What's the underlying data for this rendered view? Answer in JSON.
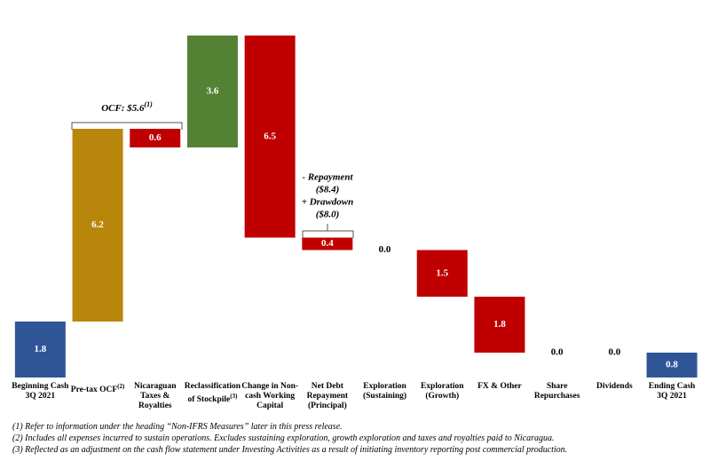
{
  "chart_data": {
    "type": "waterfall",
    "categories": [
      "Beginning Cash 3Q 2021",
      "Pre-tax OCF",
      "Nicaraguan Taxes & Royalties",
      "Reclassification of Stockpile",
      "Change in Non-cash Working Capital",
      "Net Debt Repayment (Principal)",
      "Exploration (Sustaining)",
      "Exploration (Growth)",
      "FX & Other",
      "Share Repurchases",
      "Dividends",
      "Ending Cash 3Q 2021"
    ],
    "category_notes": [
      null,
      "(2)",
      null,
      "(3)",
      null,
      null,
      null,
      null,
      null,
      null,
      null,
      null
    ],
    "values": [
      1.8,
      6.2,
      0.6,
      3.6,
      6.5,
      0.4,
      0,
      1.5,
      1.8,
      0,
      0,
      0.8
    ],
    "value_labels": [
      "1.8",
      "6.2",
      "0.6",
      "3.6",
      "6.5",
      "0.4",
      "0.0",
      "1.5",
      "1.8",
      "0.0",
      "0.0",
      "0.8"
    ],
    "steps": [
      "total",
      "increase",
      "decrease",
      "increase",
      "decrease",
      "decrease",
      "decrease",
      "decrease",
      "decrease",
      "decrease",
      "decrease",
      "total"
    ],
    "colors": [
      "#2f5597",
      "#b8860b",
      "#c00000",
      "#548235",
      "#c00000",
      "#c00000",
      "#c00000",
      "#c00000",
      "#c00000",
      "#c00000",
      "#c00000",
      "#2f5597"
    ],
    "annotations": {
      "ocf_label": "OCF: $5.6",
      "ocf_note": "(1)",
      "debt_lines": [
        "- Repayment",
        "($8.4)",
        "+ Drawdown",
        "($8.0)"
      ]
    },
    "footnotes": [
      "(1) Refer to information under the heading “Non-IFRS Measures” later in this press release.",
      "(2) Includes all expenses incurred to sustain operations. Excludes sustaining exploration, growth exploration and taxes and royalties paid to Nicaragua.",
      "(3) Reflected as an adjustment on the cash flow statement under Investing Activities  as a result of initiating inventory reporting post commercial production."
    ]
  }
}
